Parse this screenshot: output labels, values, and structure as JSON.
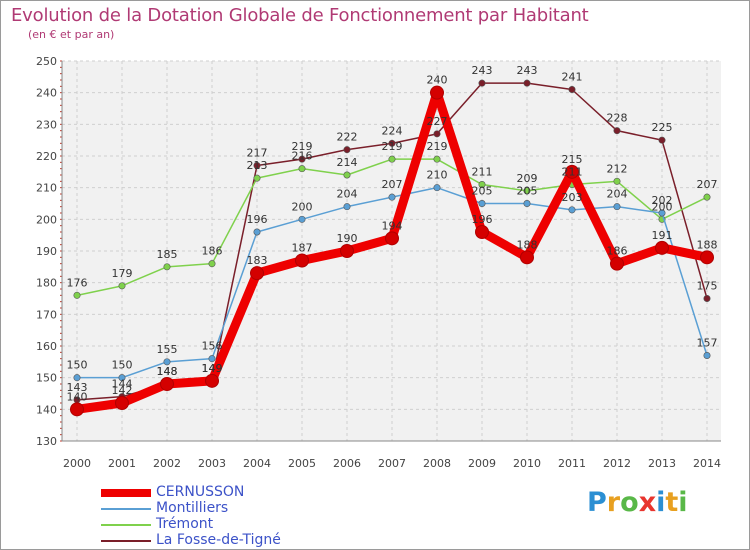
{
  "title": "Evolution de la Dotation Globale de Fonctionnement par Habitant",
  "subtitle": "(en € et par an)",
  "logo": {
    "letters": [
      "P",
      "r",
      "o",
      "x",
      "i",
      "t",
      "i"
    ],
    "colors": [
      "#2b8fd3",
      "#e8a020",
      "#59b848",
      "#e8352e",
      "#2b8fd3",
      "#e8a020",
      "#59b848"
    ]
  },
  "chart_data": {
    "type": "line",
    "x": [
      "2000",
      "2001",
      "2002",
      "2003",
      "2004",
      "2005",
      "2006",
      "2007",
      "2008",
      "2009",
      "2010",
      "2011",
      "2012",
      "2013",
      "2014"
    ],
    "ylim": [
      130,
      250
    ],
    "yticks": [
      "130",
      "140",
      "150",
      "160",
      "170",
      "180",
      "190",
      "200",
      "210",
      "220",
      "230",
      "240",
      "250"
    ],
    "grid": true,
    "legend_position": "bottom-left",
    "series": [
      {
        "name": "La Fosse-de-Tigné",
        "color": "#7a1f2a",
        "values": [
          143,
          144,
          148,
          149,
          217,
          219,
          222,
          224,
          227,
          243,
          243,
          241,
          228,
          225,
          175
        ],
        "labels": [
          "143",
          "144",
          "148",
          "149",
          "217",
          "219",
          "222",
          "224",
          "227",
          "243",
          "243",
          "241",
          "228",
          "225",
          "175"
        ]
      },
      {
        "name": "Trémont",
        "color": "#7fd14c",
        "values": [
          176,
          179,
          185,
          186,
          213,
          216,
          214,
          219,
          219,
          211,
          209,
          211,
          212,
          200,
          207
        ],
        "labels": [
          "176",
          "179",
          "185",
          "186",
          "213",
          "216",
          "214",
          "219",
          "219",
          "211",
          "209",
          "211",
          "212",
          "200",
          "207"
        ]
      },
      {
        "name": "Montilliers",
        "color": "#5a9fd4",
        "values": [
          150,
          150,
          155,
          156,
          196,
          200,
          204,
          207,
          210,
          205,
          205,
          203,
          204,
          202,
          157
        ],
        "labels": [
          "150",
          "150",
          "155",
          "156",
          "196",
          "200",
          "204",
          "207",
          "210",
          "205",
          "205",
          "203",
          "204",
          "202",
          "157"
        ]
      },
      {
        "name": "CERNUSSON",
        "color": "#ee0000",
        "values": [
          140,
          142,
          148,
          149,
          183,
          187,
          190,
          194,
          240,
          196,
          188,
          215,
          186,
          191,
          188
        ],
        "labels": [
          "140",
          "142",
          "148",
          "149",
          "183",
          "187",
          "190",
          "194",
          "240",
          "196",
          "188",
          "215",
          "186",
          "191",
          "188"
        ]
      }
    ],
    "legend": [
      "CERNUSSON",
      "Montilliers",
      "Trémont",
      "La Fosse-de-Tigné"
    ],
    "legend_colors": [
      "#ee0000",
      "#5a9fd4",
      "#7fd14c",
      "#7a1f2a"
    ]
  }
}
